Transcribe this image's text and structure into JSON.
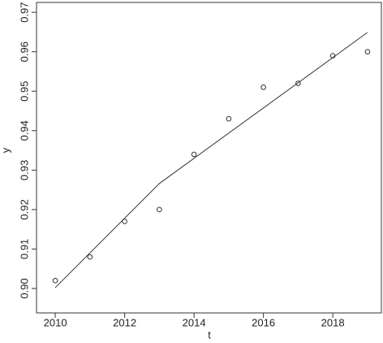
{
  "chart_data": {
    "type": "scatter",
    "x_label": "t",
    "y_label": "y",
    "xlim": [
      2009.46,
      2019.4
    ],
    "ylim": [
      0.8938,
      0.9725
    ],
    "xticks": [
      2010,
      2012,
      2014,
      2016,
      2018
    ],
    "yticks": [
      {
        "value": 0.9,
        "label": "0.90"
      },
      0.91,
      0.92,
      0.93,
      0.94,
      0.95,
      0.96,
      0.97
    ],
    "series": [
      {
        "mode": "points",
        "color": "#333333",
        "x": [
          2010,
          2011,
          2012,
          2013,
          2014,
          2015,
          2016,
          2017,
          2018,
          2019
        ],
        "values": [
          0.902,
          0.908,
          0.917,
          0.92,
          0.934,
          0.943,
          0.951,
          0.952,
          0.959,
          0.96
        ]
      },
      {
        "mode": "line",
        "color": "#333333",
        "x": [
          2010,
          2013,
          2019
        ],
        "values": [
          0.9002,
          0.9266,
          0.9649
        ]
      }
    ]
  }
}
